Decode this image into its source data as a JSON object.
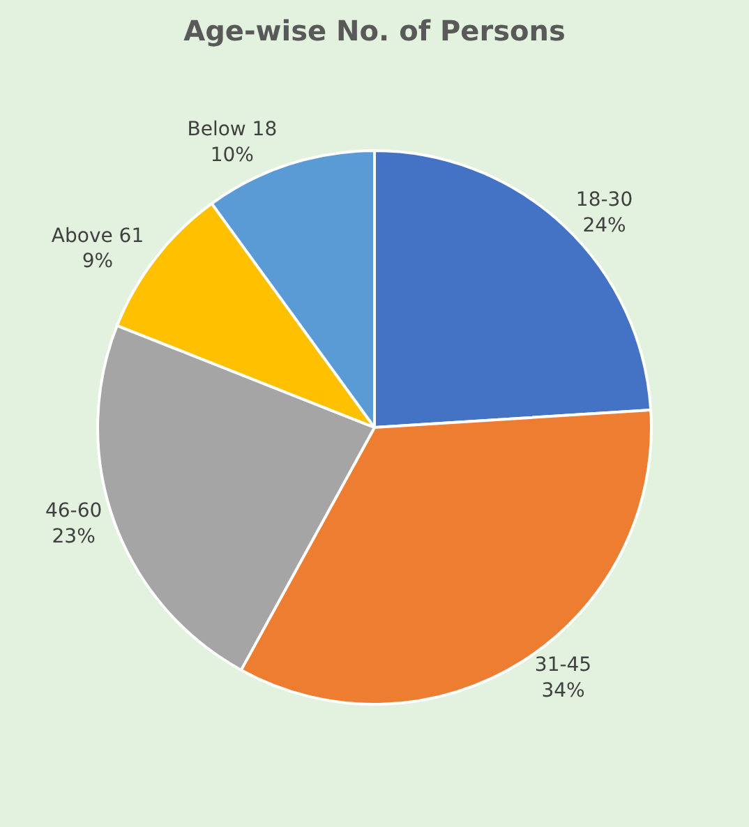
{
  "chart_data": {
    "type": "pie",
    "title": "Age-wise No. of Persons",
    "categories": [
      "18-30",
      "31-45",
      "46-60",
      "Above 61",
      "Below 18"
    ],
    "values": [
      24,
      34,
      23,
      9,
      10
    ],
    "value_labels": [
      "24%",
      "34%",
      "23%",
      "9%",
      "10%"
    ],
    "colors": [
      "#4472c4",
      "#ed7d31",
      "#a5a5a5",
      "#ffc000",
      "#5b9bd5"
    ],
    "legend": false
  }
}
